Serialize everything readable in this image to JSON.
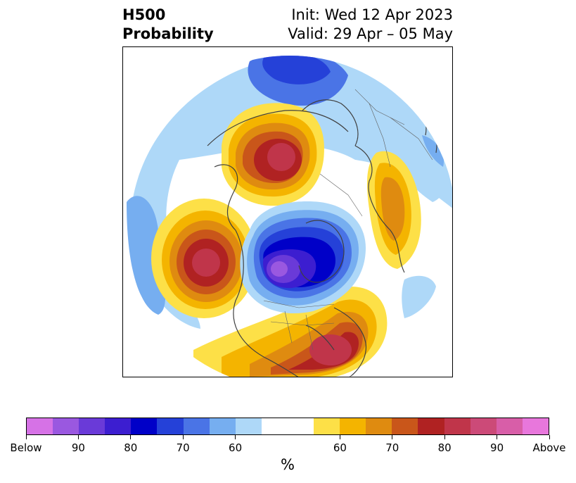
{
  "title": {
    "left_line1": "H500",
    "left_line2": "Probability",
    "right_line1": "Init: Wed 12 Apr 2023",
    "right_line2": "Valid: 29 Apr – 05 May"
  },
  "colorbar": {
    "unit": "%",
    "colors": [
      "#d672e6",
      "#9a58e0",
      "#6a3ad8",
      "#3c1ed0",
      "#0000c8",
      "#2541d8",
      "#4a74e6",
      "#76aef0",
      "#aed8f8",
      "#ffffff",
      "#ffffff",
      "#fde047",
      "#f4b400",
      "#df8b10",
      "#c9561a",
      "#b02222",
      "#c0354a",
      "#cc4a78",
      "#d85ea8",
      "#e877dc"
    ],
    "tick_labels": [
      "Below",
      "90",
      "80",
      "70",
      "60",
      "60",
      "70",
      "80",
      "90",
      "Above"
    ]
  },
  "map": {
    "projection": "north-polar-stereographic",
    "anomalies": [
      {
        "region": "Canada / Hudson Bay",
        "sign": "below",
        "peak_percent": 90
      },
      {
        "region": "Eastern Siberia",
        "sign": "above",
        "peak_percent": 90
      },
      {
        "region": "North Atlantic",
        "sign": "above",
        "peak_percent": 90
      },
      {
        "region": "North Pacific",
        "sign": "above",
        "peak_percent": 90
      },
      {
        "region": "Western Russia",
        "sign": "above",
        "peak_percent": 70
      },
      {
        "region": "Arctic Ocean",
        "sign": "below",
        "peak_percent": 70
      }
    ]
  }
}
